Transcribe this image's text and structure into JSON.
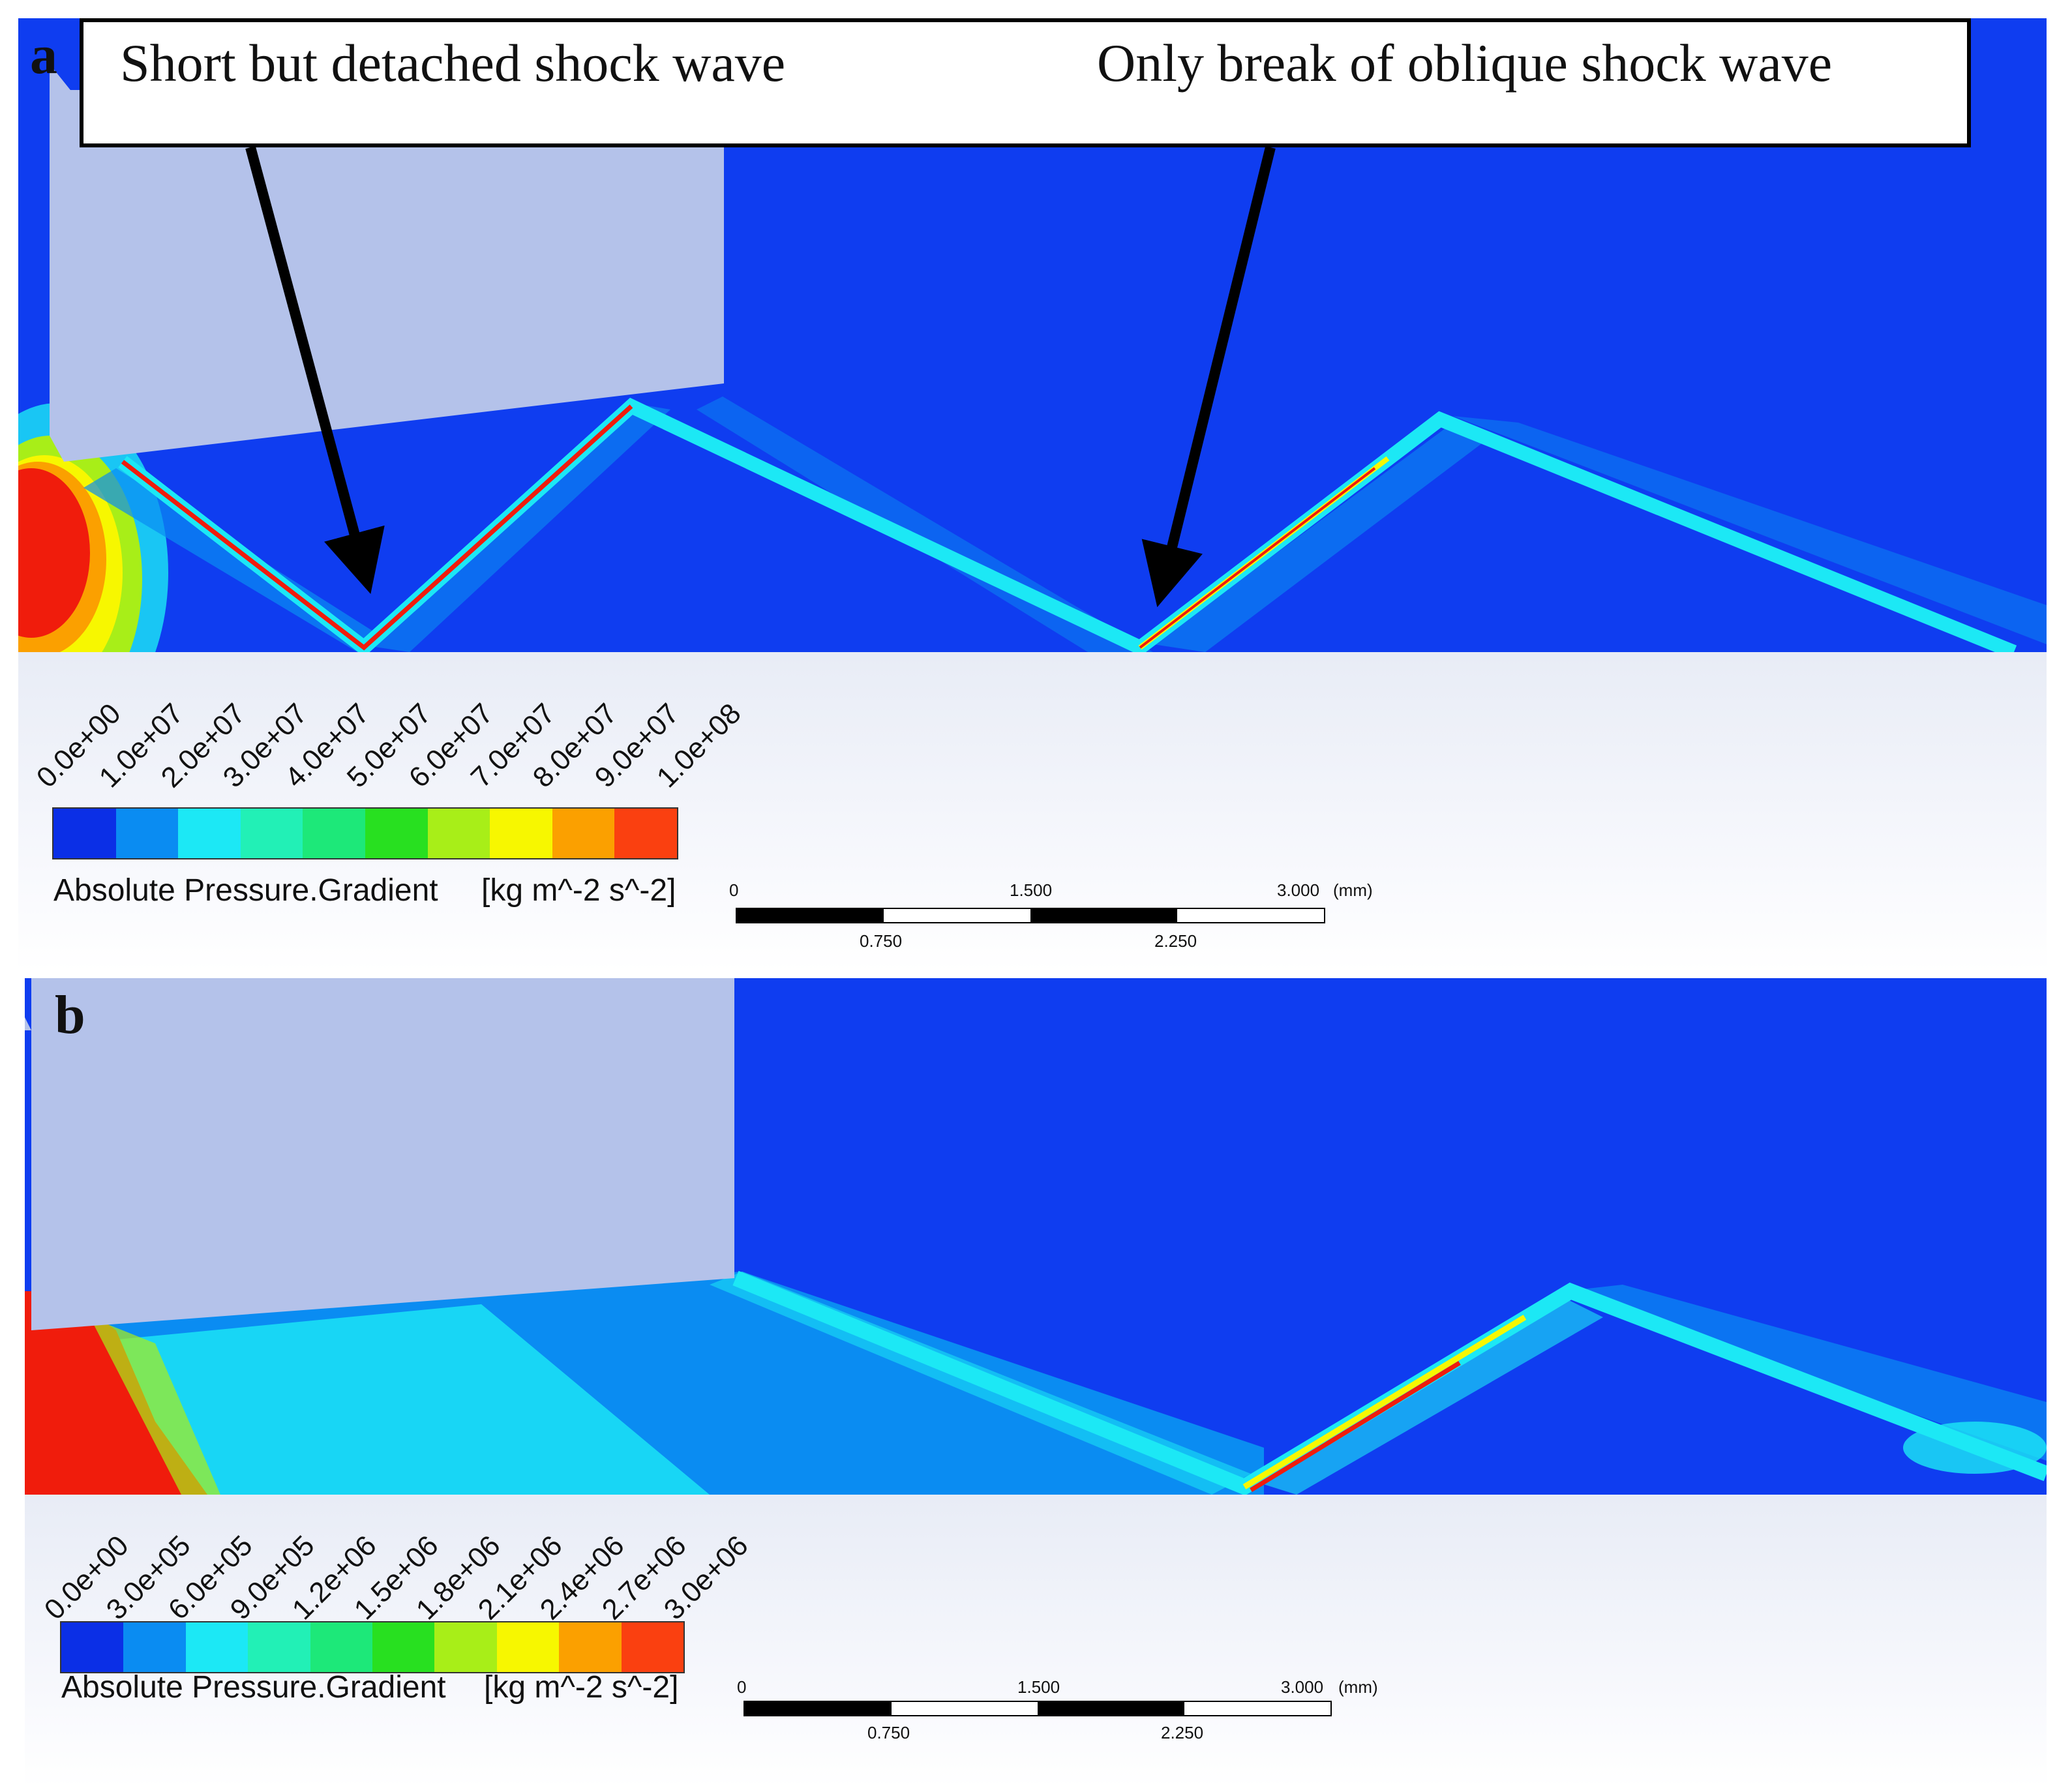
{
  "panels": [
    {
      "letter": "a",
      "colorbar": {
        "ticks": [
          "0.0e+00",
          "1.0e+07",
          "2.0e+07",
          "3.0e+07",
          "4.0e+07",
          "5.0e+07",
          "6.0e+07",
          "7.0e+07",
          "8.0e+07",
          "9.0e+07",
          "1.0e+08"
        ],
        "colors": [
          "#0b2fe6",
          "#0a8cf2",
          "#1ce8f5",
          "#22f0b6",
          "#1de879",
          "#28e020",
          "#a8ee18",
          "#f7f700",
          "#fba000",
          "#fa4010"
        ],
        "title": "Absolute Pressure.Gradient",
        "unit": "[kg m^-2 s^-2]"
      },
      "scale": {
        "labels_top": [
          "0",
          "1.500",
          "3.000"
        ],
        "labels_bottom": [
          "0.750",
          "2.250"
        ],
        "unit": "(mm)"
      }
    },
    {
      "letter": "b",
      "colorbar": {
        "ticks": [
          "0.0e+00",
          "3.0e+05",
          "6.0e+05",
          "9.0e+05",
          "1.2e+06",
          "1.5e+06",
          "1.8e+06",
          "2.1e+06",
          "2.4e+06",
          "2.7e+06",
          "3.0e+06"
        ],
        "colors": [
          "#0b2fe6",
          "#0a8cf2",
          "#1ce8f5",
          "#22f0b6",
          "#1de879",
          "#28e020",
          "#a8ee18",
          "#f7f700",
          "#fba000",
          "#fa4010"
        ],
        "title": "Absolute Pressure.Gradient",
        "unit": "[kg m^-2 s^-2]"
      },
      "scale": {
        "labels_top": [
          "0",
          "1.500",
          "3.000"
        ],
        "labels_bottom": [
          "0.750",
          "2.250"
        ],
        "unit": "(mm)"
      }
    }
  ],
  "callouts": {
    "left": "Short but detached shock wave",
    "right": "Only break of oblique shock wave"
  },
  "colors": {
    "background_field": "#0f3df0",
    "nozzle": "#b4c2ea",
    "high": "#f01c0c",
    "cyan": "#1cd8f4",
    "light_blue": "#0a8cf2"
  }
}
